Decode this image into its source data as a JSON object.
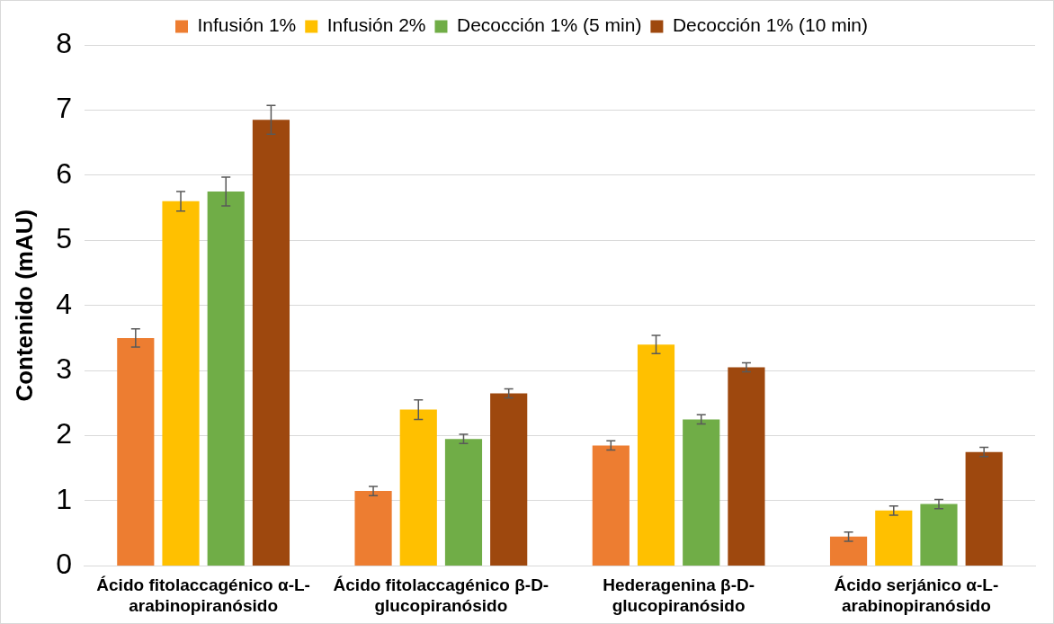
{
  "chart_data": {
    "type": "bar",
    "ylabel": "Contenido (mAU)",
    "categories": [
      "Ácido fitolaccagénico α-L-arabinopiranósido",
      "Ácido fitolaccagénico β-D-glucopiranósido",
      "Hederagenina β-D-glucopiranósido",
      "Ácido serjánico α-L-arabinopiranósido"
    ],
    "series": [
      {
        "name": "Infusión 1%",
        "color": "#ed7d31",
        "values": [
          3.5,
          1.15,
          1.85,
          0.45
        ],
        "errors": [
          0.14,
          0.07,
          0.07,
          0.07
        ]
      },
      {
        "name": "Infusión 2%",
        "color": "#ffc000",
        "values": [
          5.6,
          2.4,
          3.4,
          0.85
        ],
        "errors": [
          0.15,
          0.15,
          0.14,
          0.07
        ]
      },
      {
        "name": "Decocción 1% (5 min)",
        "color": "#70ad47",
        "values": [
          5.75,
          1.95,
          2.25,
          0.95
        ],
        "errors": [
          0.22,
          0.07,
          0.07,
          0.07
        ]
      },
      {
        "name": "Decocción 1% (10 min)",
        "color": "#9e480e",
        "values": [
          6.85,
          2.65,
          3.05,
          1.75
        ],
        "errors": [
          0.22,
          0.07,
          0.07,
          0.07
        ]
      }
    ],
    "ylim": [
      0,
      8
    ],
    "yticks": [
      0,
      1,
      2,
      3,
      4,
      5,
      6,
      7,
      8
    ],
    "grid": "y",
    "legend": "top"
  }
}
